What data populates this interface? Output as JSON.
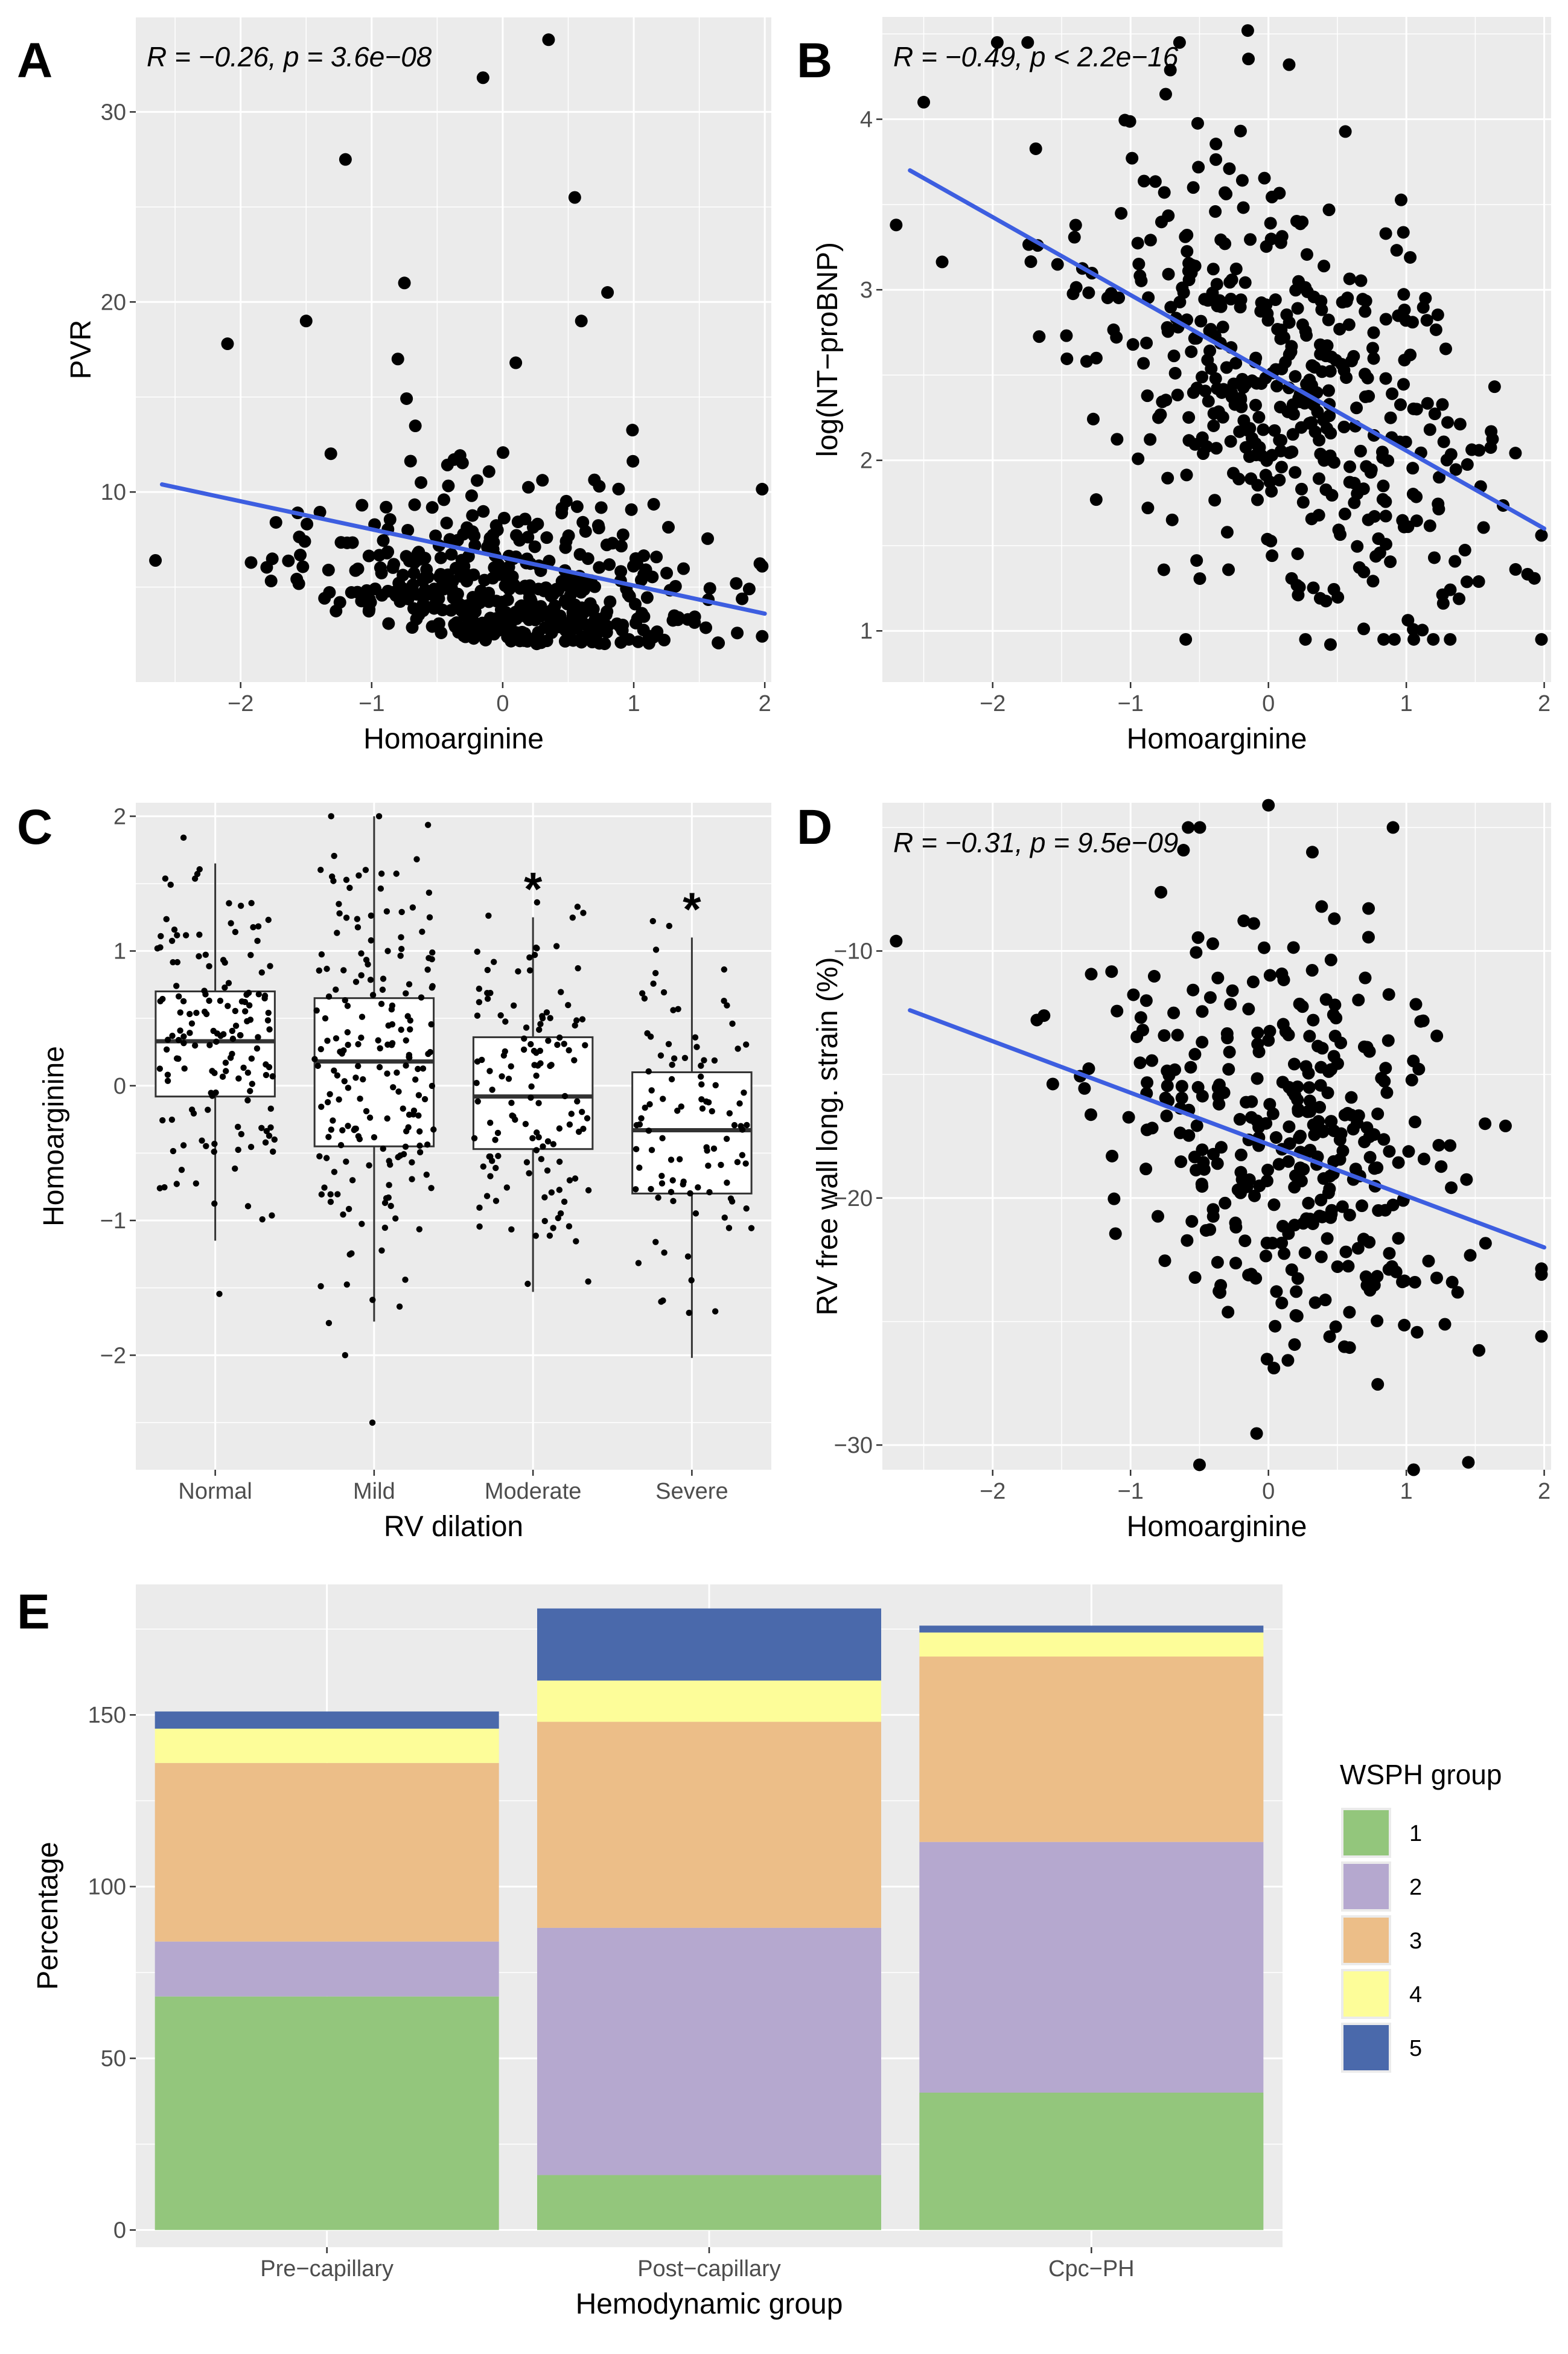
{
  "figure": {
    "panels": [
      "A",
      "B",
      "C",
      "D",
      "E"
    ]
  },
  "colors": {
    "panel_bg": "#ebebeb",
    "grid": "#ffffff",
    "point": "#000000",
    "fit_line": "#3d5ee0",
    "wsph_1": "#93c67c",
    "wsph_2": "#b5a8cf",
    "wsph_3": "#ecbe88",
    "wsph_4": "#fdfd99",
    "wsph_5": "#4a69ab"
  },
  "chart_data": [
    {
      "panel": "A",
      "type": "scatter",
      "title": "",
      "xlabel": "Homoarginine",
      "ylabel": "PVR",
      "xlim": [
        -2.8,
        2.05
      ],
      "ylim": [
        0,
        35
      ],
      "xticks": [
        -2,
        -1,
        0,
        1,
        2
      ],
      "yticks": [
        10,
        20,
        30
      ],
      "annotation": {
        "r": "R = −0.26,",
        "p": "p = 3.6e−08"
      },
      "fit_line": {
        "x": [
          -2.6,
          2.0
        ],
        "y": [
          10.4,
          3.6
        ]
      },
      "n_points": 460,
      "points_summary": "dense cloud PVR 2–15, homoarginine −2.6 to 2.0",
      "notable_points": [
        {
          "x": 0.35,
          "y": 33.8
        },
        {
          "x": -0.15,
          "y": 31.8
        },
        {
          "x": -1.2,
          "y": 27.5
        },
        {
          "x": 0.55,
          "y": 25.5
        },
        {
          "x": -0.75,
          "y": 21.0
        },
        {
          "x": 0.8,
          "y": 20.5
        },
        {
          "x": 0.6,
          "y": 19.0
        },
        {
          "x": -1.5,
          "y": 19.0
        },
        {
          "x": -2.1,
          "y": 17.8
        },
        {
          "x": 0.1,
          "y": 16.8
        },
        {
          "x": -0.8,
          "y": 17.0
        },
        {
          "x": -2.65,
          "y": 6.4
        }
      ]
    },
    {
      "panel": "B",
      "type": "scatter",
      "title": "",
      "xlabel": "Homoarginine",
      "ylabel": "log(NT−proBNP)",
      "xlim": [
        -2.8,
        2.05
      ],
      "ylim": [
        0.7,
        4.6
      ],
      "xticks": [
        -2,
        -1,
        0,
        1,
        2
      ],
      "yticks": [
        1,
        2,
        3,
        4
      ],
      "annotation": {
        "r": "R = −0.49,",
        "p": "p < 2.2e−16"
      },
      "fit_line": {
        "x": [
          -2.6,
          2.0
        ],
        "y": [
          3.7,
          1.6
        ]
      },
      "n_points": 460,
      "points_summary": "cloud log(NT-proBNP) 0.9–4.5",
      "notable_points": [
        {
          "x": -0.15,
          "y": 4.52
        },
        {
          "x": 0.15,
          "y": 4.32
        },
        {
          "x": -2.5,
          "y": 4.1
        },
        {
          "x": -2.7,
          "y": 3.38
        },
        {
          "x": 0.45,
          "y": 0.92
        },
        {
          "x": 1.98,
          "y": 1.56
        }
      ]
    },
    {
      "panel": "C",
      "type": "box",
      "title": "",
      "xlabel": "RV dilation",
      "ylabel": "Homoarginine",
      "categories": [
        "Normal",
        "Mild",
        "Moderate",
        "Severe"
      ],
      "ylim": [
        -2.85,
        2.1
      ],
      "yticks": [
        -2,
        -1,
        0,
        1,
        2
      ],
      "box_stats": [
        {
          "q1": -0.08,
          "median": 0.33,
          "q3": 0.7,
          "lower_whisker": -1.15,
          "upper_whisker": 1.65
        },
        {
          "q1": -0.45,
          "median": 0.18,
          "q3": 0.65,
          "lower_whisker": -1.75,
          "upper_whisker": 2.0
        },
        {
          "q1": -0.47,
          "median": -0.08,
          "q3": 0.36,
          "lower_whisker": -1.53,
          "upper_whisker": 1.25
        },
        {
          "q1": -0.8,
          "median": -0.33,
          "q3": 0.1,
          "lower_whisker": -2.02,
          "upper_whisker": 1.1
        }
      ],
      "significance_markers": [
        "",
        "",
        "*",
        "*"
      ],
      "jitter_points_per_group": [
        150,
        190,
        130,
        100
      ]
    },
    {
      "panel": "D",
      "type": "scatter",
      "title": "",
      "xlabel": "Homoarginine",
      "ylabel": "RV free wall long. strain (%)",
      "xlim": [
        -2.8,
        2.05
      ],
      "ylim": [
        -31,
        -4
      ],
      "xticks": [
        -2,
        -1,
        0,
        1,
        2
      ],
      "yticks": [
        -30,
        -20,
        -10
      ],
      "annotation": {
        "r": "R = −0.31,",
        "p": "p = 9.5e−09"
      },
      "fit_line": {
        "x": [
          -2.6,
          2.0
        ],
        "y": [
          -12.4,
          -22.0
        ]
      },
      "n_points": 360,
      "points_summary": "cloud strain −31 to −4",
      "notable_points": [
        {
          "x": 0.0,
          "y": -4.1
        },
        {
          "x": -2.7,
          "y": -9.6
        },
        {
          "x": 1.98,
          "y": -25.6
        },
        {
          "x": 1.45,
          "y": -30.7
        },
        {
          "x": -0.5,
          "y": -30.8
        }
      ]
    },
    {
      "panel": "E",
      "type": "bar",
      "stacked": true,
      "title": "",
      "xlabel": "Hemodynamic group",
      "ylabel": "Percentage",
      "categories": [
        "Pre−capillary",
        "Post−capillary",
        "Cpc−PH"
      ],
      "ylim": [
        -5,
        188
      ],
      "yticks": [
        0,
        50,
        100,
        150
      ],
      "legend_title": "WSPH group",
      "legend_position": "right",
      "series": [
        {
          "name": "1",
          "values": [
            68,
            16,
            40
          ]
        },
        {
          "name": "2",
          "values": [
            16,
            72,
            73
          ]
        },
        {
          "name": "3",
          "values": [
            52,
            60,
            54
          ]
        },
        {
          "name": "4",
          "values": [
            10,
            12,
            7
          ]
        },
        {
          "name": "5",
          "values": [
            5,
            21,
            2
          ]
        }
      ]
    }
  ]
}
